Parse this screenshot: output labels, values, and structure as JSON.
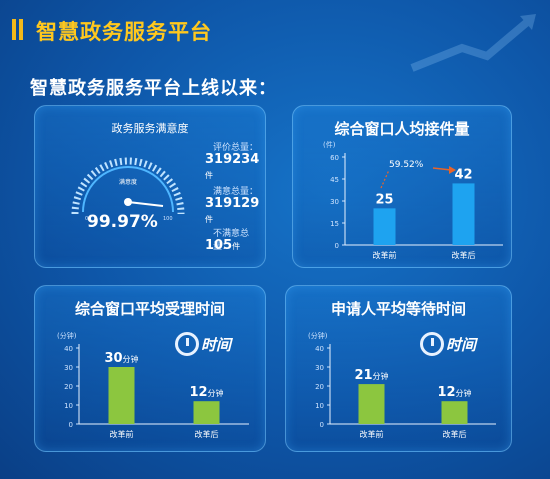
{
  "header": {
    "title": "智慧政务服务平台"
  },
  "headline": "智慧政务服务平台上线以来：",
  "satisfaction": {
    "title": "政务服务满意度",
    "gauge_label": "满意度",
    "gauge_min": "0",
    "gauge_max": "100",
    "percent": "99.97%",
    "total_label": "评价总量：",
    "total_value": "319234",
    "total_unit": "件",
    "satisfied_label": "满意总量：",
    "satisfied_value": "319129",
    "satisfied_unit": "件",
    "unsatisfied_label": "不满意总量：",
    "unsatisfied_value": "105",
    "unsatisfied_unit": "件"
  },
  "logo_text": "时间",
  "colors": {
    "blue_bar": "#1ea3f0",
    "green_bar": "#8cc63f",
    "title_yellow": "#ffc81e",
    "arrow": "#e8652a"
  },
  "chart_data": [
    {
      "type": "bar",
      "title": "综合窗口人均接件量",
      "ylabel": "(件)",
      "ylim": [
        0,
        60
      ],
      "ticks": [
        "0",
        "15",
        "30",
        "45",
        "60"
      ],
      "categories": [
        "改革前",
        "改革后"
      ],
      "values": [
        25,
        42
      ],
      "data_labels": [
        "25",
        "42"
      ],
      "annotation": "59.52%"
    },
    {
      "type": "bar",
      "title": "综合窗口平均受理时间",
      "ylabel": "(分钟)",
      "ylim": [
        0,
        40
      ],
      "ticks": [
        "0",
        "10",
        "20",
        "30",
        "40"
      ],
      "categories": [
        "改革前",
        "改革后"
      ],
      "values": [
        30,
        12
      ],
      "data_labels": [
        "30",
        "12"
      ],
      "unit": "分钟"
    },
    {
      "type": "bar",
      "title": "申请人平均等待时间",
      "ylabel": "(分钟)",
      "ylim": [
        0,
        40
      ],
      "ticks": [
        "0",
        "10",
        "20",
        "30",
        "40"
      ],
      "categories": [
        "改革前",
        "改革后"
      ],
      "values": [
        21,
        12
      ],
      "data_labels": [
        "21",
        "12"
      ],
      "unit": "分钟"
    }
  ]
}
